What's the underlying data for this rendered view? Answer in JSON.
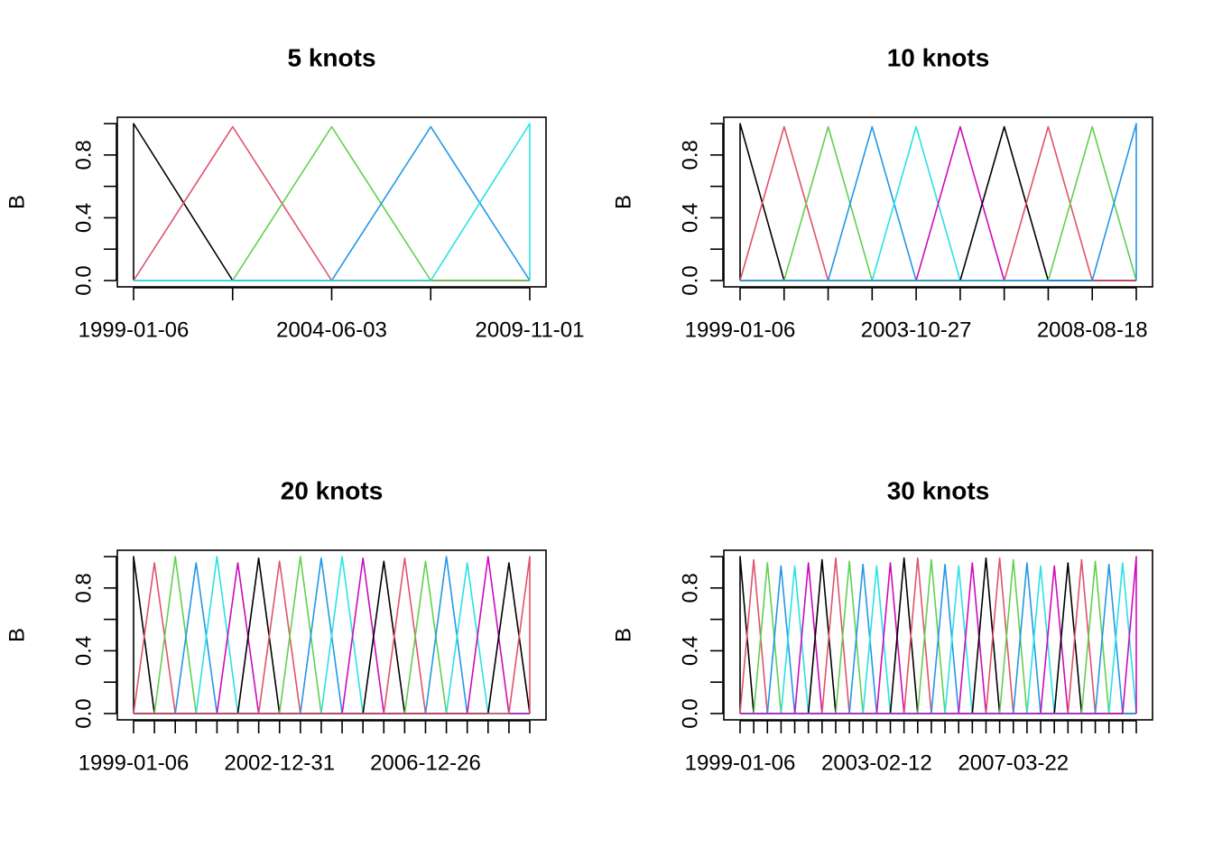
{
  "palette": [
    "#000000",
    "#df536b",
    "#61d04f",
    "#2297e6",
    "#28e2e5",
    "#cd0bbc"
  ],
  "chart_data": [
    {
      "type": "line",
      "title": "5 knots",
      "ylabel": "B",
      "knots": 5,
      "x_range": [
        "1999-01-06",
        "2015-03-31"
      ],
      "ylim": [
        0,
        1
      ],
      "y_ticks": [
        "0.0",
        "0.4",
        "0.8"
      ],
      "y_minor_ticks": [
        0.2,
        0.6,
        1.0
      ],
      "x_tick_labels": [
        "1999-01-06",
        "2004-06-03",
        "2009-11-01"
      ],
      "x_tick_count": 5,
      "peaks": [
        1,
        0.98,
        0.98,
        0.98,
        1
      ],
      "grid": false,
      "legend": "none"
    },
    {
      "type": "line",
      "title": "10 knots",
      "ylabel": "B",
      "knots": 10,
      "x_range": [
        "1999-01-06",
        "2015-03-31"
      ],
      "ylim": [
        0,
        1
      ],
      "y_ticks": [
        "0.0",
        "0.4",
        "0.8"
      ],
      "y_minor_ticks": [
        0.2,
        0.6,
        1.0
      ],
      "x_tick_labels": [
        "1999-01-06",
        "2003-10-27",
        "2008-08-18"
      ],
      "x_tick_count": 10,
      "peaks": [
        1,
        0.98,
        0.98,
        0.98,
        0.98,
        0.98,
        0.98,
        0.98,
        0.98,
        1
      ],
      "grid": false,
      "legend": "none"
    },
    {
      "type": "line",
      "title": "20 knots",
      "ylabel": "B",
      "knots": 20,
      "x_range": [
        "1999-01-06",
        "2015-03-31"
      ],
      "ylim": [
        0,
        1
      ],
      "y_ticks": [
        "0.0",
        "0.4",
        "0.8"
      ],
      "y_minor_ticks": [
        0.2,
        0.6,
        1.0
      ],
      "x_tick_labels": [
        "1999-01-06",
        "2002-12-31",
        "2006-12-26"
      ],
      "x_tick_count": 20,
      "peaks": [
        1,
        0.96,
        1,
        0.96,
        1,
        0.96,
        0.99,
        0.97,
        1,
        0.99,
        1,
        0.99,
        0.97,
        0.99,
        0.97,
        1,
        0.96,
        1,
        0.96,
        1
      ],
      "grid": false,
      "legend": "none"
    },
    {
      "type": "line",
      "title": "30 knots",
      "ylabel": "B",
      "knots": 30,
      "x_range": [
        "1999-01-06",
        "2015-03-31"
      ],
      "ylim": [
        0,
        1
      ],
      "y_ticks": [
        "0.0",
        "0.4",
        "0.8"
      ],
      "y_minor_ticks": [
        0.2,
        0.6,
        1.0
      ],
      "x_tick_labels": [
        "1999-01-06",
        "2003-02-12",
        "2007-03-22"
      ],
      "x_tick_count": 30,
      "peaks": [
        1,
        0.98,
        0.96,
        0.94,
        0.94,
        0.96,
        0.98,
        0.99,
        0.97,
        0.95,
        0.94,
        0.96,
        0.99,
        0.99,
        0.98,
        0.95,
        0.94,
        0.96,
        0.99,
        0.99,
        0.98,
        0.96,
        0.94,
        0.94,
        0.96,
        0.98,
        0.97,
        0.95,
        0.96,
        1
      ],
      "grid": false,
      "legend": "none"
    }
  ]
}
